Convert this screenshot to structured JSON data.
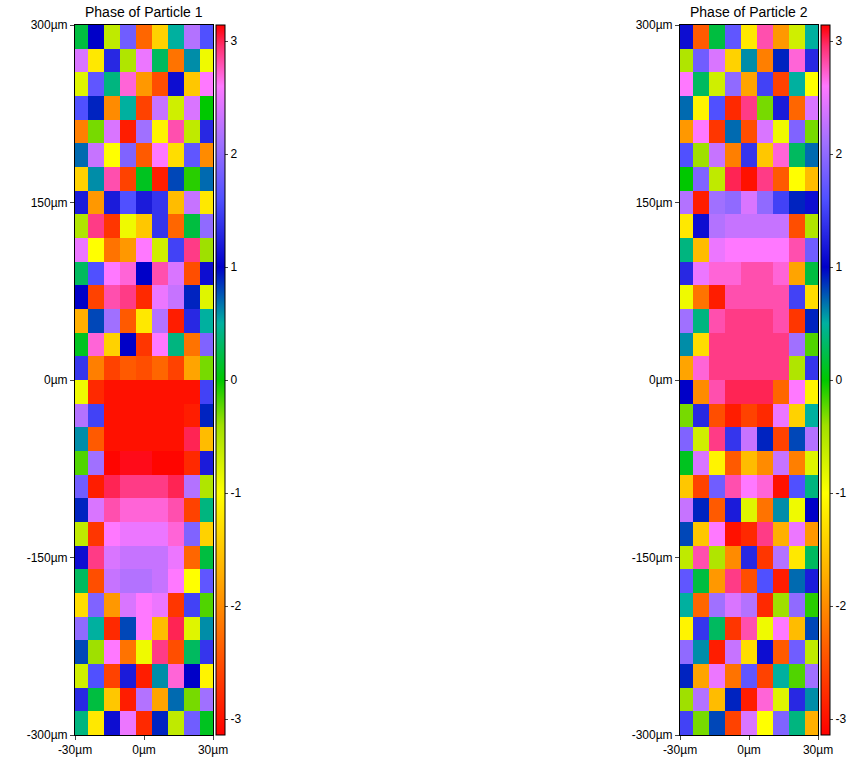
{
  "chart_data": [
    {
      "type": "heatmap",
      "title": "Phase of Particle 1",
      "x": [
        -28,
        -21,
        -14,
        -7,
        0,
        7,
        14,
        21,
        28
      ],
      "y": [
        -290,
        -270,
        -250,
        -230,
        -210,
        -190,
        -170,
        -150,
        -130,
        -110,
        -90,
        -70,
        -50,
        -30,
        -10,
        10,
        30,
        50,
        70,
        90,
        110,
        130,
        150,
        170,
        190,
        210,
        230,
        250,
        270,
        290
      ],
      "cells": [
        [
          0.4,
          -1.2,
          1.1,
          2.5,
          -2.8,
          0.9,
          -0.6,
          1.8,
          0.1
        ],
        [
          1.3,
          0.2,
          -1.5,
          -2.9,
          2.2,
          -1.8,
          0.7,
          -0.3,
          2.1
        ],
        [
          -0.7,
          1.6,
          -2.6,
          1.2,
          -2.9,
          0.6,
          2.7,
          1.0,
          -1.1
        ],
        [
          0.8,
          -0.4,
          2.6,
          -2.2,
          -0.9,
          2.9,
          -2.5,
          0.3,
          1.4
        ],
        [
          2.0,
          0.5,
          -2.8,
          0.8,
          2.6,
          -1.6,
          3.0,
          -0.8,
          0.6
        ],
        [
          -1.3,
          1.9,
          -1.9,
          2.4,
          2.6,
          2.5,
          -2.7,
          1.5,
          -0.2
        ],
        [
          0.3,
          -2.5,
          2.3,
          2.2,
          2.2,
          2.3,
          2.6,
          -1.0,
          1.7
        ],
        [
          1.1,
          2.9,
          2.4,
          2.3,
          2.3,
          2.3,
          2.5,
          -2.3,
          0.2
        ],
        [
          -0.6,
          -2.7,
          2.6,
          2.5,
          2.5,
          2.5,
          2.7,
          1.9,
          -1.4
        ],
        [
          0.9,
          2.4,
          2.8,
          2.7,
          2.7,
          2.7,
          2.8,
          -2.6,
          0.4
        ],
        [
          1.8,
          -2.9,
          3.0,
          2.9,
          2.9,
          2.9,
          3.0,
          2.2,
          -0.5
        ],
        [
          -0.2,
          2.1,
          -3.1,
          3.1,
          3.1,
          -3.1,
          -3.1,
          -2.8,
          1.2
        ],
        [
          0.6,
          -2.4,
          -3.0,
          -3.0,
          -3.0,
          -3.0,
          -3.0,
          3.0,
          -1.6
        ],
        [
          2.2,
          1.5,
          -3.0,
          -3.0,
          -3.0,
          -3.0,
          -3.0,
          -2.9,
          0.9
        ],
        [
          -0.9,
          -2.8,
          -3.0,
          -3.0,
          -3.0,
          -3.0,
          -3.0,
          -3.0,
          1.5
        ],
        [
          1.4,
          -2.1,
          -2.6,
          -2.4,
          -2.5,
          -2.3,
          -2.6,
          -1.8,
          -0.3
        ],
        [
          0.1,
          2.7,
          -1.4,
          1.0,
          -2.7,
          2.6,
          0.4,
          -2.2,
          1.9
        ],
        [
          -1.7,
          0.8,
          2.1,
          -2.4,
          -1.2,
          2.2,
          -2.9,
          1.3,
          0.5
        ],
        [
          1.0,
          -2.6,
          2.8,
          2.9,
          -2.8,
          2.5,
          2.3,
          0.9,
          -0.8
        ],
        [
          0.3,
          1.6,
          2.6,
          2.7,
          1.0,
          2.8,
          2.4,
          -2.5,
          1.1
        ],
        [
          2.5,
          -1.0,
          -2.2,
          -1.9,
          2.6,
          -0.7,
          1.5,
          2.9,
          -0.4
        ],
        [
          -0.5,
          2.9,
          -2.7,
          -0.9,
          -1.5,
          1.4,
          -2.3,
          0.2,
          2.0
        ],
        [
          1.2,
          -1.9,
          1.2,
          1.6,
          1.2,
          1.4,
          -1.6,
          2.3,
          -1.2
        ],
        [
          -1.4,
          0.6,
          2.8,
          -2.6,
          0.1,
          -2.9,
          0.8,
          -0.1,
          0.7
        ],
        [
          0.7,
          2.3,
          -1.0,
          1.9,
          -2.4,
          2.6,
          -1.3,
          1.7,
          -2.0
        ],
        [
          -2.1,
          -0.3,
          2.4,
          -2.9,
          2.1,
          -1.1,
          2.8,
          -0.6,
          1.3
        ],
        [
          1.6,
          0.9,
          -2.0,
          0.5,
          -2.6,
          2.3,
          -0.7,
          2.4,
          0.0
        ],
        [
          -0.8,
          1.7,
          0.4,
          2.7,
          -1.9,
          -2.5,
          1.1,
          -1.5,
          2.6
        ],
        [
          2.4,
          -1.2,
          1.3,
          -0.5,
          2.5,
          0.3,
          -2.2,
          0.6,
          -0.9
        ],
        [
          0.2,
          1.0,
          -0.6,
          1.8,
          -2.3,
          -1.4,
          0.5,
          2.2,
          1.6
        ]
      ],
      "xlim": [
        -30,
        30
      ],
      "ylim": [
        -300,
        300
      ],
      "xticks": [
        {
          "value": -30,
          "label": "-30µm"
        },
        {
          "value": 0,
          "label": "0µm"
        },
        {
          "value": 30,
          "label": "30µm"
        }
      ],
      "yticks": [
        {
          "value": -300,
          "label": "-300µm"
        },
        {
          "value": -150,
          "label": "-150µm"
        },
        {
          "value": 0,
          "label": "0µm"
        },
        {
          "value": 150,
          "label": "150µm"
        },
        {
          "value": 300,
          "label": "300µm"
        }
      ],
      "colorbar_range": [
        -3.1416,
        3.1416
      ],
      "colorbar_ticks": [
        -3,
        -2,
        -1,
        0,
        1,
        2,
        3
      ]
    },
    {
      "type": "heatmap",
      "title": "Phase of Particle 2",
      "x": [
        -28,
        -21,
        -14,
        -7,
        0,
        7,
        14,
        21,
        28
      ],
      "y": [
        -290,
        -270,
        -250,
        -230,
        -210,
        -190,
        -170,
        -150,
        -130,
        -110,
        -90,
        -70,
        -50,
        -30,
        -10,
        10,
        30,
        50,
        70,
        90,
        110,
        130,
        150,
        170,
        190,
        210,
        230,
        250,
        270,
        290
      ],
      "cells": [
        [
          1.5,
          -0.3,
          0.8,
          -2.6,
          2.4,
          -1.0,
          1.9,
          0.4,
          -1.7
        ],
        [
          -0.4,
          2.2,
          -1.6,
          0.9,
          -2.9,
          2.7,
          -0.8,
          1.3,
          0.6
        ],
        [
          0.9,
          -1.8,
          2.5,
          -2.2,
          1.7,
          -2.6,
          0.5,
          -0.2,
          2.1
        ],
        [
          2.0,
          0.6,
          -2.9,
          2.3,
          -1.3,
          1.1,
          -2.4,
          1.8,
          -0.6
        ],
        [
          -1.1,
          1.4,
          0.3,
          -2.7,
          2.8,
          -0.9,
          2.6,
          -1.6,
          0.8
        ],
        [
          0.5,
          -2.3,
          2.1,
          2.4,
          2.2,
          -2.8,
          -0.4,
          2.0,
          -0.1
        ],
        [
          1.7,
          0.2,
          -1.9,
          2.9,
          -2.5,
          1.6,
          -2.9,
          0.7,
          1.2
        ],
        [
          -0.6,
          2.8,
          -0.5,
          -2.0,
          1.3,
          -2.7,
          2.2,
          -1.2,
          0.3
        ],
        [
          0.8,
          -1.5,
          2.6,
          -3.0,
          -2.8,
          2.9,
          -1.7,
          2.5,
          -1.9
        ],
        [
          2.3,
          0.9,
          -2.4,
          1.2,
          -0.8,
          -2.2,
          0.6,
          -0.9,
          1.0
        ],
        [
          -1.5,
          -2.6,
          1.8,
          2.8,
          2.6,
          2.7,
          -3.0,
          1.6,
          0.4
        ],
        [
          0.1,
          2.4,
          -1.1,
          -2.4,
          -1.6,
          -2.0,
          2.3,
          -2.1,
          -0.8
        ],
        [
          1.9,
          -0.7,
          2.9,
          1.4,
          2.3,
          0.9,
          -2.6,
          0.8,
          2.2
        ],
        [
          -0.3,
          1.3,
          -2.5,
          -2.9,
          -2.6,
          -2.8,
          2.5,
          -1.4,
          0.5
        ],
        [
          1.0,
          -2.0,
          2.8,
          3.0,
          3.0,
          3.0,
          -2.3,
          2.6,
          -1.1
        ],
        [
          -1.8,
          2.7,
          2.9,
          2.9,
          2.9,
          2.9,
          2.9,
          -0.5,
          1.4
        ],
        [
          0.6,
          -1.3,
          2.9,
          2.9,
          2.9,
          2.9,
          2.9,
          2.1,
          -0.2
        ],
        [
          2.1,
          0.4,
          2.8,
          2.9,
          2.9,
          2.9,
          2.8,
          -2.7,
          0.9
        ],
        [
          -0.9,
          -2.2,
          -2.9,
          2.8,
          2.8,
          2.8,
          2.8,
          1.5,
          -1.3
        ],
        [
          1.3,
          2.5,
          2.7,
          2.7,
          2.8,
          2.8,
          2.7,
          -1.8,
          0.2
        ],
        [
          0.4,
          -1.6,
          2.5,
          2.6,
          2.6,
          2.6,
          2.6,
          2.8,
          1.8
        ],
        [
          -1.2,
          1.1,
          2.2,
          2.3,
          2.3,
          2.3,
          2.3,
          -2.5,
          -0.5
        ],
        [
          2.2,
          -2.9,
          2.1,
          2.0,
          2.4,
          2.0,
          1.5,
          0.9,
          1.1
        ],
        [
          0.0,
          1.9,
          -0.6,
          3.0,
          -3.0,
          2.9,
          -2.4,
          -1.0,
          -1.6
        ],
        [
          1.6,
          -0.4,
          2.3,
          -2.1,
          1.4,
          -1.5,
          2.7,
          0.3,
          0.7
        ],
        [
          -1.9,
          2.6,
          -2.7,
          0.7,
          -2.5,
          2.4,
          -0.9,
          1.9,
          -0.3
        ],
        [
          0.7,
          -1.1,
          1.6,
          -2.8,
          2.9,
          -0.3,
          1.2,
          -2.3,
          2.4
        ],
        [
          2.6,
          0.3,
          -0.7,
          2.0,
          -1.8,
          1.5,
          -2.6,
          0.5,
          -1.0
        ],
        [
          -0.5,
          1.8,
          2.4,
          -1.4,
          0.6,
          -2.1,
          0.9,
          2.7,
          1.3
        ],
        [
          1.1,
          -2.4,
          0.2,
          1.7,
          -1.2,
          2.8,
          -1.9,
          -0.7,
          0.5
        ]
      ],
      "xlim": [
        -30,
        30
      ],
      "ylim": [
        -300,
        300
      ],
      "xticks": [
        {
          "value": -30,
          "label": "-30µm"
        },
        {
          "value": 0,
          "label": "0µm"
        },
        {
          "value": 30,
          "label": "30µm"
        }
      ],
      "yticks": [
        {
          "value": -300,
          "label": "-300µm"
        },
        {
          "value": -150,
          "label": "-150µm"
        },
        {
          "value": 0,
          "label": "0µm"
        },
        {
          "value": 150,
          "label": "150µm"
        },
        {
          "value": 300,
          "label": "300µm"
        }
      ],
      "colorbar_range": [
        -3.1416,
        3.1416
      ],
      "colorbar_ticks": [
        -3,
        -2,
        -1,
        0,
        1,
        2,
        3
      ]
    }
  ]
}
